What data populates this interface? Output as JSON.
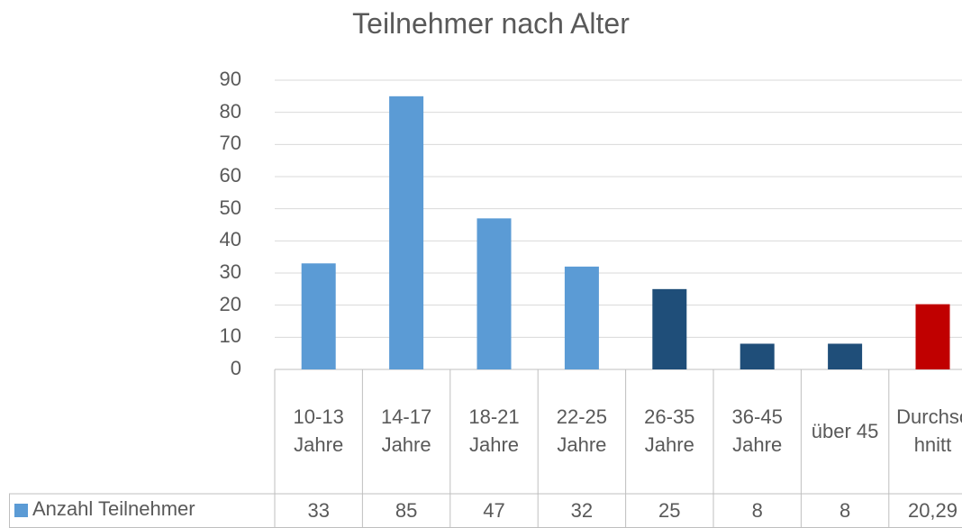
{
  "chart_data": {
    "type": "bar",
    "title": "Teilnehmer nach Alter",
    "categories": [
      "10-13 Jahre",
      "14-17 Jahre",
      "18-21 Jahre",
      "22-25 Jahre",
      "26-35 Jahre",
      "36-45 Jahre",
      "über 45",
      "Durchschnitt"
    ],
    "series": [
      {
        "name": "Anzahl Teilnehmer",
        "color": "#5b9bd5",
        "colors": [
          "#5b9bd5",
          "#5b9bd5",
          "#5b9bd5",
          "#5b9bd5",
          "#1f4e79",
          "#1f4e79",
          "#1f4e79",
          "#c00000"
        ],
        "values": [
          33,
          85,
          47,
          32,
          25,
          8,
          8,
          20.29
        ],
        "value_labels": [
          "33",
          "85",
          "47",
          "32",
          "25",
          "8",
          "8",
          "20,29"
        ]
      }
    ],
    "ylim": [
      0,
      90
    ],
    "yticks": [
      0,
      10,
      20,
      30,
      40,
      50,
      60,
      70,
      80,
      90
    ],
    "grid": true
  }
}
